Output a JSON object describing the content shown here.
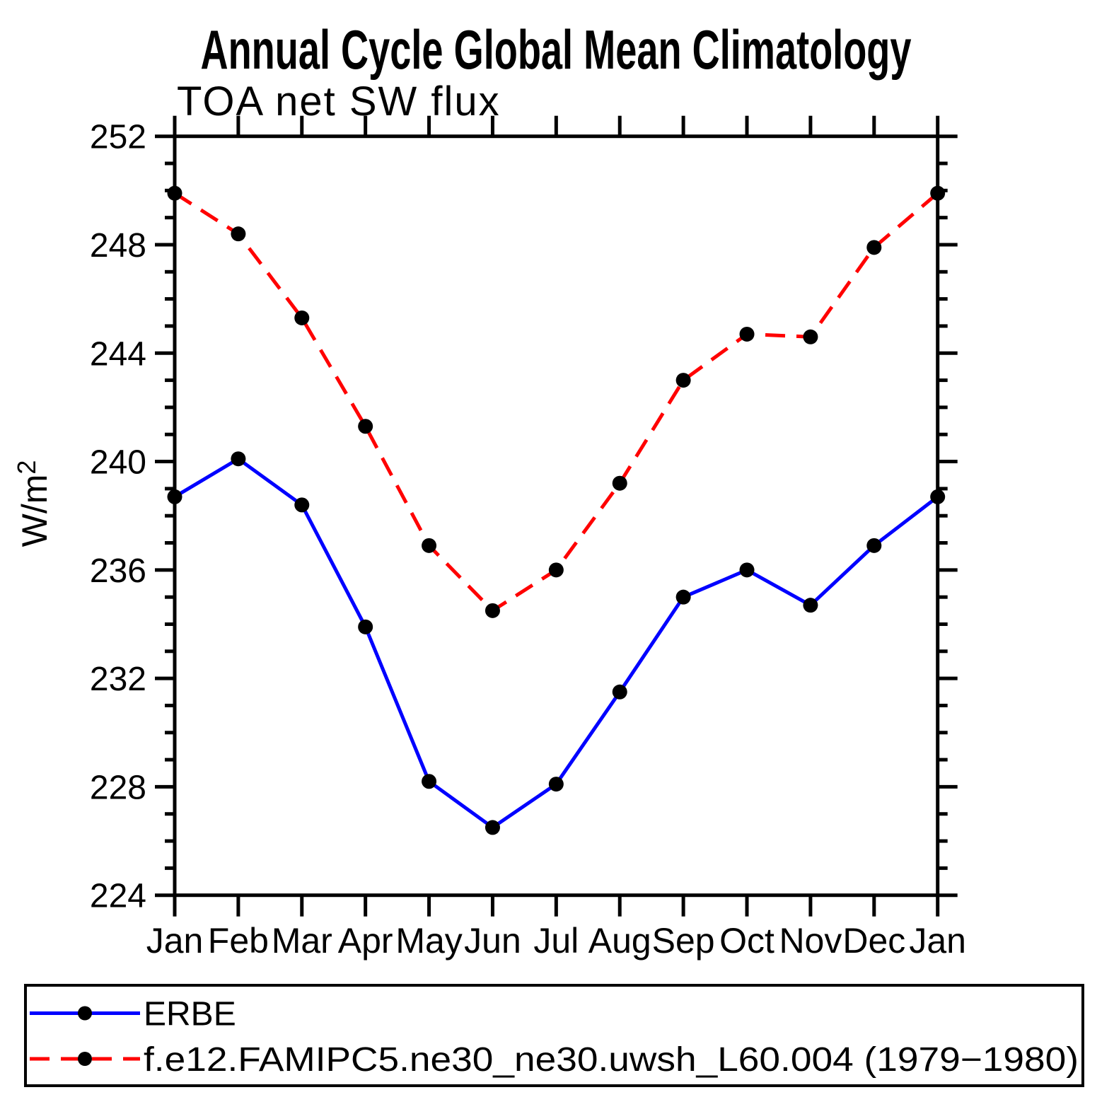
{
  "chart_data": {
    "type": "line",
    "title": "Annual Cycle Global Mean Climatology",
    "subtitle": "TOA net SW flux",
    "ylabel_base": "W/m",
    "ylabel_exponent": "2",
    "categories": [
      "Jan",
      "Feb",
      "Mar",
      "Apr",
      "May",
      "Jun",
      "Jul",
      "Aug",
      "Sep",
      "Oct",
      "Nov",
      "Dec",
      "Jan"
    ],
    "series": [
      {
        "name": "ERBE",
        "line_color": "#0000ff",
        "line_style": "solid",
        "marker": "circle",
        "marker_color": "#000000",
        "values": [
          238.7,
          240.1,
          238.4,
          233.9,
          228.2,
          226.5,
          228.1,
          231.5,
          235.0,
          236.0,
          234.7,
          236.9,
          238.7
        ]
      },
      {
        "name": "f.e12.FAMIPC5.ne30_ne30.uwsh_L60.004 (1979−1980)",
        "line_color": "#ff0000",
        "line_style": "dashed",
        "marker": "circle",
        "marker_color": "#000000",
        "values": [
          249.9,
          248.4,
          245.3,
          241.3,
          236.9,
          234.5,
          236.0,
          239.2,
          243.0,
          244.7,
          244.6,
          247.9,
          249.9
        ]
      }
    ],
    "ylim": [
      224,
      252
    ],
    "ytick_major_step": 4,
    "ytick_minor_step": 1,
    "ytick_labels": [
      "224",
      "228",
      "232",
      "236",
      "240",
      "244",
      "248",
      "252"
    ],
    "grid": false,
    "legend_position": "bottom",
    "axis_color": "#000000",
    "background_color": "#ffffff"
  }
}
